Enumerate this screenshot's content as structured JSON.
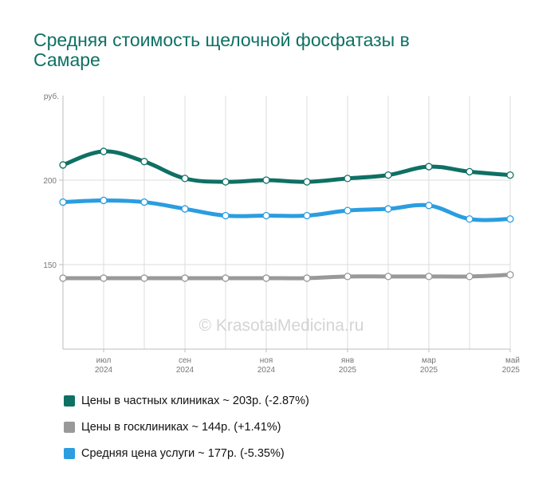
{
  "title": "Средняя стоимость щелочной фосфатазы в Самаре",
  "watermark": "© KrasotaiMedicina.ru",
  "chart_data": {
    "type": "line",
    "title": "Средняя стоимость щелочной фосфатазы в Самаре",
    "ylabel": "руб.",
    "ylim": [
      100,
      250
    ],
    "yticks": [
      {
        "value": 200,
        "label": "200"
      },
      {
        "value": 150,
        "label": "150"
      }
    ],
    "xlim": [
      0,
      11
    ],
    "x": [
      0,
      1,
      2,
      3,
      4,
      5,
      6,
      7,
      8,
      9,
      10,
      11
    ],
    "grid_x": [
      1,
      2,
      3,
      4,
      5,
      6,
      7,
      8,
      9,
      10,
      11
    ],
    "xticks": [
      {
        "x": 1,
        "line1": "июл",
        "line2": "2024"
      },
      {
        "x": 3,
        "line1": "сен",
        "line2": "2024"
      },
      {
        "x": 5,
        "line1": "ноя",
        "line2": "2024"
      },
      {
        "x": 7,
        "line1": "янв",
        "line2": "2025"
      },
      {
        "x": 9,
        "line1": "мар",
        "line2": "2025"
      },
      {
        "x": 11,
        "line1": "май",
        "line2": "2025"
      }
    ],
    "grid": true,
    "legend_position": "bottom",
    "series": [
      {
        "name": "Цены в частных клиниках",
        "legend": "Цены в частных клиниках ~ 203р. (-2.87%)",
        "color": "#0f7064",
        "values": [
          209,
          217,
          211,
          201,
          199,
          200,
          199,
          201,
          203,
          208,
          205,
          203
        ]
      },
      {
        "name": "Цены в госклиниках",
        "legend": "Цены в госклиниках ~ 144р. (+1.41%)",
        "color": "#999999",
        "values": [
          142,
          142,
          142,
          142,
          142,
          142,
          142,
          143,
          143,
          143,
          143,
          144
        ]
      },
      {
        "name": "Средняя цена услуги",
        "legend": "Средняя цена услуги ~ 177р. (-5.35%)",
        "color": "#2b9de0",
        "values": [
          187,
          188,
          187,
          183,
          179,
          179,
          179,
          182,
          183,
          185,
          177,
          177
        ]
      }
    ]
  }
}
